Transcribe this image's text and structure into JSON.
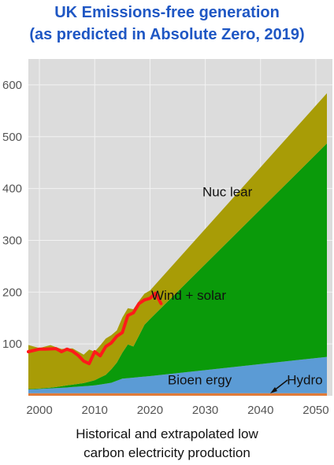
{
  "title_line1": "UK Emissions-free generation",
  "title_line2": "(as predicted in Absolute Zero, 2019)",
  "caption_line1": "Historical and extrapolated low",
  "caption_line2": "carbon electricity production",
  "chart_data": {
    "type": "area",
    "stacked": true,
    "xlim": [
      1998,
      2053
    ],
    "ylim": [
      0,
      650
    ],
    "x_ticks": [
      2000,
      2010,
      2020,
      2030,
      2040,
      2050
    ],
    "y_ticks": [
      100,
      200,
      300,
      400,
      500,
      600
    ],
    "grid": true,
    "series": [
      {
        "name": "Hydro",
        "color": "#e07b39",
        "points": [
          [
            1998,
            5
          ],
          [
            2052,
            5
          ]
        ]
      },
      {
        "name": "Bioenergy",
        "color": "#5b9bd5",
        "points": [
          [
            1998,
            7
          ],
          [
            2000,
            8
          ],
          [
            2005,
            11
          ],
          [
            2010,
            15
          ],
          [
            2013,
            20
          ],
          [
            2015,
            28
          ],
          [
            2017,
            30
          ],
          [
            2020,
            33
          ],
          [
            2052,
            70
          ]
        ]
      },
      {
        "name": "Wind + solar",
        "color": "#0a9a0a",
        "points": [
          [
            1998,
            1
          ],
          [
            2000,
            1
          ],
          [
            2003,
            2
          ],
          [
            2005,
            4
          ],
          [
            2008,
            6
          ],
          [
            2010,
            10
          ],
          [
            2012,
            17
          ],
          [
            2014,
            35
          ],
          [
            2015,
            50
          ],
          [
            2016,
            65
          ],
          [
            2017,
            60
          ],
          [
            2018,
            80
          ],
          [
            2019,
            100
          ],
          [
            2020,
            110
          ],
          [
            2052,
            412
          ]
        ]
      },
      {
        "name": "Nuclear",
        "color": "#a89c06",
        "points": [
          [
            1998,
            85
          ],
          [
            2000,
            78
          ],
          [
            2002,
            82
          ],
          [
            2004,
            72
          ],
          [
            2006,
            70
          ],
          [
            2008,
            55
          ],
          [
            2009,
            62
          ],
          [
            2010,
            55
          ],
          [
            2011,
            62
          ],
          [
            2012,
            70
          ],
          [
            2014,
            62
          ],
          [
            2015,
            68
          ],
          [
            2016,
            70
          ],
          [
            2017,
            72
          ],
          [
            2018,
            67
          ],
          [
            2019,
            60
          ],
          [
            2020,
            55
          ],
          [
            2052,
            97
          ]
        ]
      }
    ],
    "historical_line": {
      "name": "Historical total",
      "color": "#ff1a1a",
      "points": [
        [
          1998,
          85
        ],
        [
          2000,
          90
        ],
        [
          2001,
          90
        ],
        [
          2003,
          91
        ],
        [
          2004,
          85
        ],
        [
          2005,
          90
        ],
        [
          2006,
          86
        ],
        [
          2007,
          78
        ],
        [
          2008,
          67
        ],
        [
          2009,
          62
        ],
        [
          2010,
          85
        ],
        [
          2011,
          77
        ],
        [
          2012,
          95
        ],
        [
          2013,
          102
        ],
        [
          2014,
          115
        ],
        [
          2015,
          122
        ],
        [
          2016,
          155
        ],
        [
          2017,
          160
        ],
        [
          2018,
          178
        ],
        [
          2019,
          185
        ],
        [
          2020,
          188
        ],
        [
          2021,
          198
        ],
        [
          2022,
          178
        ]
      ]
    },
    "annotations": [
      {
        "text": "Nuc lear",
        "x": 2034,
        "y": 385
      },
      {
        "text": "Wind + solar",
        "x": 2027,
        "y": 185
      },
      {
        "text": "Bioen ergy",
        "x": 2029,
        "y": 22
      },
      {
        "text": "Hydro",
        "x": 2048,
        "y": 22
      }
    ]
  }
}
